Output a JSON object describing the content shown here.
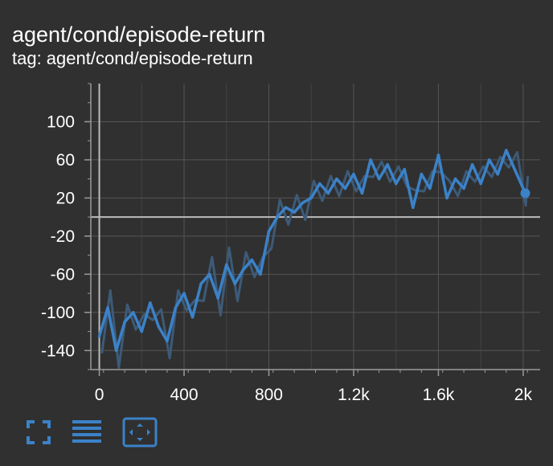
{
  "card": {
    "title": "agent/cond/episode-return",
    "subtitle": "tag: agent/cond/episode-return"
  },
  "colors": {
    "background": "#303030",
    "line": "#3b82c9",
    "smoothed_shadow": "#3d5b78",
    "grid": "#555555",
    "axis": "#9a9a9a",
    "zero_line": "#bbbbbb",
    "icon": "#3b82c9"
  },
  "toolbar": {
    "icons": [
      "fullscreen-icon",
      "toggle-log-scale-icon",
      "fit-domain-icon"
    ]
  },
  "chart_data": {
    "type": "line",
    "title": "agent/cond/episode-return",
    "xlabel": "",
    "ylabel": "",
    "xlim": [
      -40,
      2080
    ],
    "ylim": [
      -160,
      140
    ],
    "x_ticks": [
      0,
      400,
      800,
      1200,
      1600,
      2000
    ],
    "x_tick_labels": [
      "0",
      "400",
      "800",
      "1.2k",
      "1.6k",
      "2k"
    ],
    "y_ticks": [
      100,
      60,
      20,
      -20,
      -60,
      -100,
      -140
    ],
    "y_tick_labels": [
      "100",
      "60",
      "20",
      "-20",
      "-60",
      "-100",
      "-140"
    ],
    "grid": true,
    "series": [
      {
        "color": "#3b82c9",
        "x": [
          0,
          40,
          80,
          120,
          160,
          200,
          240,
          280,
          320,
          360,
          400,
          440,
          480,
          520,
          560,
          600,
          640,
          680,
          720,
          760,
          800,
          840,
          880,
          920,
          960,
          1000,
          1040,
          1080,
          1120,
          1160,
          1200,
          1240,
          1280,
          1320,
          1360,
          1400,
          1440,
          1480,
          1520,
          1560,
          1600,
          1640,
          1680,
          1720,
          1760,
          1800,
          1840,
          1880,
          1920,
          1960,
          2000,
          2010
        ],
        "y": [
          -125,
          -95,
          -140,
          -110,
          -100,
          -120,
          -90,
          -115,
          -130,
          -95,
          -80,
          -105,
          -70,
          -60,
          -85,
          -50,
          -70,
          -55,
          -45,
          -60,
          -15,
          0,
          10,
          5,
          15,
          20,
          35,
          25,
          40,
          30,
          45,
          25,
          60,
          40,
          55,
          35,
          50,
          10,
          45,
          30,
          65,
          20,
          40,
          30,
          55,
          35,
          60,
          45,
          70,
          50,
          30,
          25
        ]
      }
    ]
  }
}
